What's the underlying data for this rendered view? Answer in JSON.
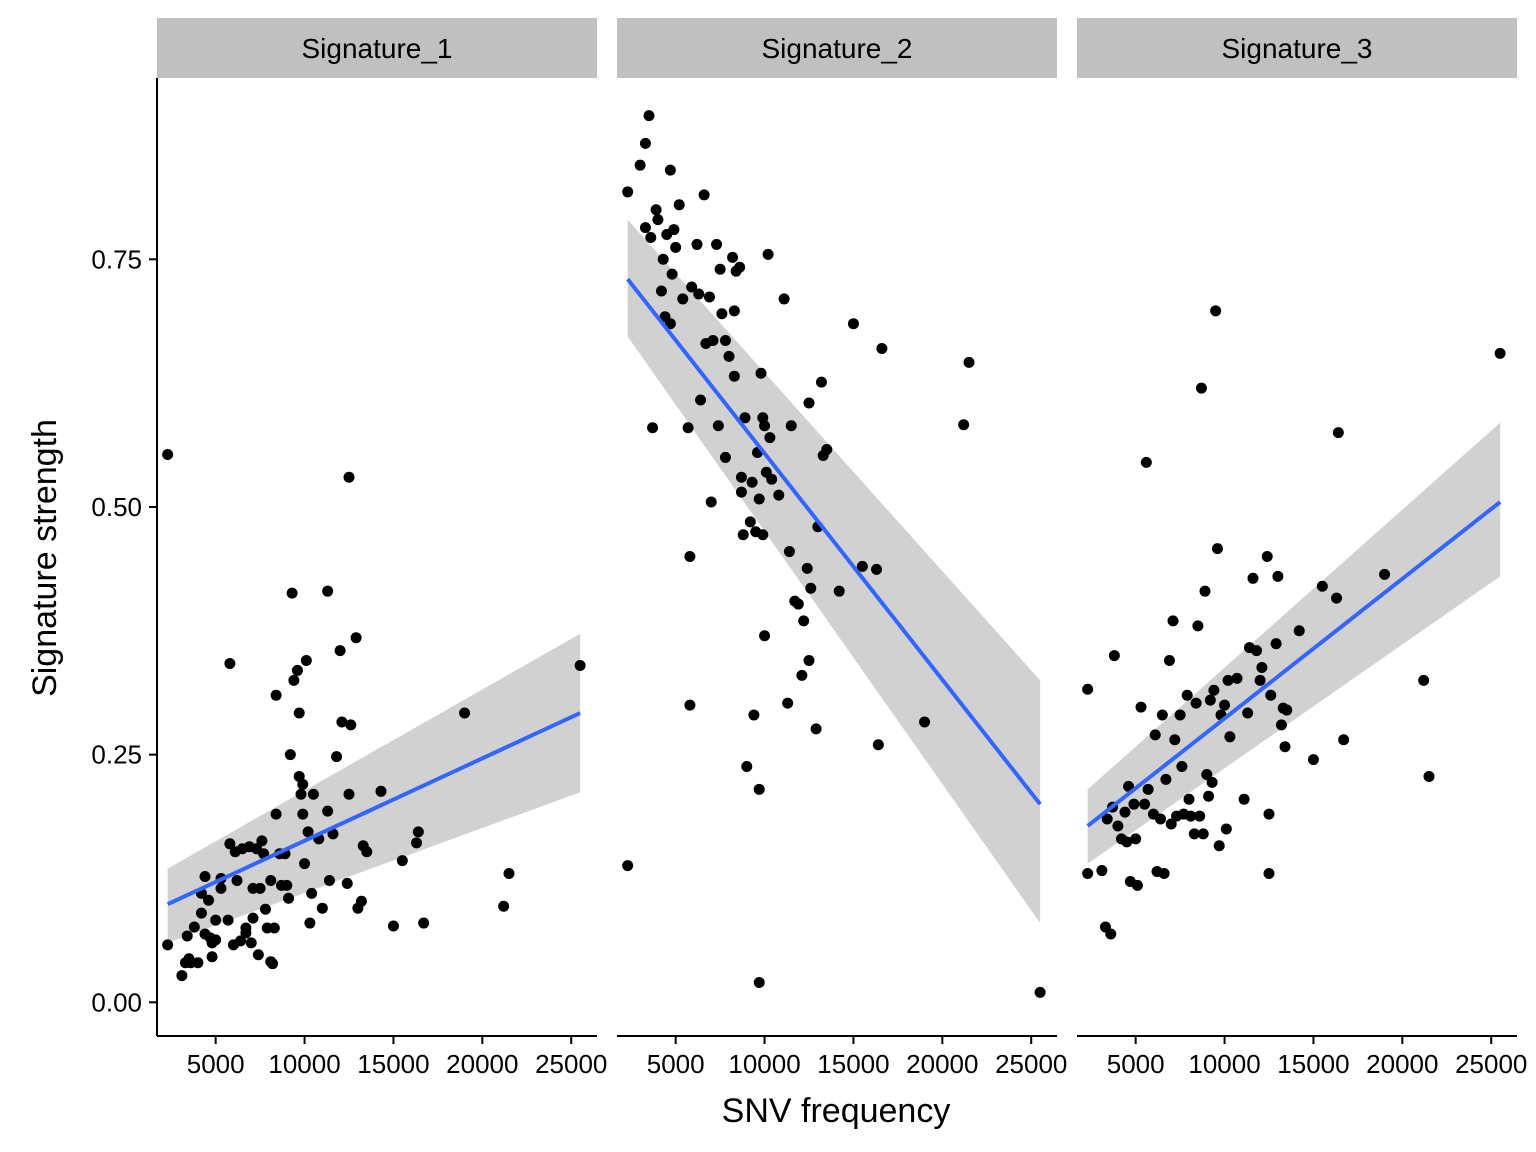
{
  "chart_data": {
    "type": "scatter",
    "facets": [
      "Signature_1",
      "Signature_2",
      "Signature_3"
    ],
    "xlabel": "SNV frequency",
    "ylabel": "Signature strength",
    "x_ticks": [
      5000,
      10000,
      15000,
      20000,
      25000
    ],
    "x_tick_labels": [
      "5000",
      "10000",
      "15000",
      "20000",
      "25000"
    ],
    "y_ticks": [
      0.0,
      0.25,
      0.5,
      0.75
    ],
    "y_tick_labels": [
      "0.00",
      "0.25",
      "0.50",
      "0.75"
    ],
    "xlim": [
      1700,
      26450
    ],
    "ylim": [
      -0.034,
      0.933
    ],
    "grid": false,
    "colors": {
      "points": "#000000",
      "fit_line": "#3366FF",
      "confidence_band": "#CCCCCC",
      "strip_background": "#C0C0C0"
    },
    "panels": [
      {
        "name": "Signature_1",
        "fit": {
          "x": [
            2300,
            25500
          ],
          "y": [
            0.099,
            0.292
          ]
        },
        "band": {
          "x": [
            2300,
            25500
          ],
          "lower": [
            0.06,
            0.212
          ],
          "upper": [
            0.135,
            0.372
          ]
        },
        "points": [
          [
            2300,
            0.553
          ],
          [
            2300,
            0.058
          ],
          [
            3100,
            0.027
          ],
          [
            3300,
            0.04
          ],
          [
            3400,
            0.067
          ],
          [
            3500,
            0.044
          ],
          [
            3600,
            0.04
          ],
          [
            3800,
            0.076
          ],
          [
            4000,
            0.04
          ],
          [
            4200,
            0.09
          ],
          [
            4200,
            0.11
          ],
          [
            4400,
            0.127
          ],
          [
            4400,
            0.069
          ],
          [
            4600,
            0.103
          ],
          [
            4700,
            0.065
          ],
          [
            4800,
            0.06
          ],
          [
            4800,
            0.046
          ],
          [
            5000,
            0.063
          ],
          [
            5000,
            0.083
          ],
          [
            5300,
            0.115
          ],
          [
            5300,
            0.125
          ],
          [
            5700,
            0.083
          ],
          [
            5800,
            0.342
          ],
          [
            5800,
            0.16
          ],
          [
            6000,
            0.058
          ],
          [
            6100,
            0.152
          ],
          [
            6200,
            0.123
          ],
          [
            6400,
            0.062
          ],
          [
            6500,
            0.155
          ],
          [
            6700,
            0.07
          ],
          [
            6700,
            0.075
          ],
          [
            6900,
            0.157
          ],
          [
            7000,
            0.06
          ],
          [
            7100,
            0.115
          ],
          [
            7100,
            0.085
          ],
          [
            7300,
            0.155
          ],
          [
            7400,
            0.048
          ],
          [
            7500,
            0.115
          ],
          [
            7600,
            0.163
          ],
          [
            7700,
            0.15
          ],
          [
            7800,
            0.094
          ],
          [
            7900,
            0.075
          ],
          [
            8100,
            0.123
          ],
          [
            8100,
            0.041
          ],
          [
            8200,
            0.039
          ],
          [
            8300,
            0.075
          ],
          [
            8400,
            0.31
          ],
          [
            8400,
            0.19
          ],
          [
            8600,
            0.15
          ],
          [
            8700,
            0.118
          ],
          [
            8900,
            0.15
          ],
          [
            9000,
            0.118
          ],
          [
            9100,
            0.105
          ],
          [
            9200,
            0.25
          ],
          [
            9300,
            0.413
          ],
          [
            9400,
            0.325
          ],
          [
            9600,
            0.335
          ],
          [
            9700,
            0.292
          ],
          [
            9700,
            0.228
          ],
          [
            9800,
            0.21
          ],
          [
            9900,
            0.22
          ],
          [
            9900,
            0.19
          ],
          [
            10000,
            0.14
          ],
          [
            10100,
            0.345
          ],
          [
            10200,
            0.172
          ],
          [
            10300,
            0.08
          ],
          [
            10400,
            0.11
          ],
          [
            10500,
            0.21
          ],
          [
            10800,
            0.165
          ],
          [
            11000,
            0.095
          ],
          [
            11300,
            0.415
          ],
          [
            11300,
            0.193
          ],
          [
            11400,
            0.123
          ],
          [
            11600,
            0.17
          ],
          [
            11800,
            0.248
          ],
          [
            12000,
            0.355
          ],
          [
            12100,
            0.283
          ],
          [
            12400,
            0.12
          ],
          [
            12500,
            0.21
          ],
          [
            12500,
            0.53
          ],
          [
            12600,
            0.28
          ],
          [
            12900,
            0.368
          ],
          [
            13000,
            0.095
          ],
          [
            13200,
            0.102
          ],
          [
            13300,
            0.158
          ],
          [
            13500,
            0.152
          ],
          [
            14300,
            0.213
          ],
          [
            15000,
            0.077
          ],
          [
            15500,
            0.143
          ],
          [
            16300,
            0.161
          ],
          [
            16400,
            0.172
          ],
          [
            16700,
            0.08
          ],
          [
            19000,
            0.292
          ],
          [
            21200,
            0.097
          ],
          [
            21500,
            0.13
          ],
          [
            25500,
            0.34
          ]
        ]
      },
      {
        "name": "Signature_2",
        "fit": {
          "x": [
            2300,
            25500
          ],
          "y": [
            0.73,
            0.2
          ]
        },
        "band": {
          "x": [
            2300,
            25500
          ],
          "lower": [
            0.672,
            0.08
          ],
          "upper": [
            0.79,
            0.325
          ]
        },
        "points": [
          [
            2300,
            0.138
          ],
          [
            2300,
            0.818
          ],
          [
            3000,
            0.845
          ],
          [
            3300,
            0.782
          ],
          [
            3300,
            0.867
          ],
          [
            3500,
            0.895
          ],
          [
            3600,
            0.772
          ],
          [
            3700,
            0.58
          ],
          [
            3900,
            0.8
          ],
          [
            4000,
            0.79
          ],
          [
            4200,
            0.718
          ],
          [
            4300,
            0.75
          ],
          [
            4400,
            0.692
          ],
          [
            4500,
            0.775
          ],
          [
            4700,
            0.685
          ],
          [
            4700,
            0.84
          ],
          [
            4800,
            0.735
          ],
          [
            4900,
            0.78
          ],
          [
            5000,
            0.762
          ],
          [
            5200,
            0.805
          ],
          [
            5400,
            0.71
          ],
          [
            5700,
            0.58
          ],
          [
            5800,
            0.45
          ],
          [
            5800,
            0.3
          ],
          [
            5900,
            0.722
          ],
          [
            6200,
            0.765
          ],
          [
            6300,
            0.715
          ],
          [
            6400,
            0.608
          ],
          [
            6600,
            0.815
          ],
          [
            6700,
            0.665
          ],
          [
            6900,
            0.712
          ],
          [
            7000,
            0.505
          ],
          [
            7100,
            0.668
          ],
          [
            7300,
            0.765
          ],
          [
            7400,
            0.582
          ],
          [
            7500,
            0.74
          ],
          [
            7600,
            0.695
          ],
          [
            7800,
            0.55
          ],
          [
            7800,
            0.668
          ],
          [
            8000,
            0.652
          ],
          [
            8200,
            0.752
          ],
          [
            8300,
            0.698
          ],
          [
            8300,
            0.632
          ],
          [
            8400,
            0.738
          ],
          [
            8600,
            0.742
          ],
          [
            8700,
            0.515
          ],
          [
            8700,
            0.53
          ],
          [
            8800,
            0.472
          ],
          [
            8900,
            0.59
          ],
          [
            9000,
            0.238
          ],
          [
            9200,
            0.485
          ],
          [
            9300,
            0.525
          ],
          [
            9400,
            0.29
          ],
          [
            9500,
            0.475
          ],
          [
            9600,
            0.555
          ],
          [
            9700,
            0.215
          ],
          [
            9700,
            0.508
          ],
          [
            9800,
            0.635
          ],
          [
            9900,
            0.472
          ],
          [
            10000,
            0.582
          ],
          [
            10000,
            0.37
          ],
          [
            10100,
            0.535
          ],
          [
            10200,
            0.755
          ],
          [
            10300,
            0.57
          ],
          [
            10400,
            0.528
          ],
          [
            10800,
            0.512
          ],
          [
            11100,
            0.71
          ],
          [
            11300,
            0.302
          ],
          [
            11400,
            0.455
          ],
          [
            11500,
            0.582
          ],
          [
            11700,
            0.405
          ],
          [
            11900,
            0.402
          ],
          [
            12100,
            0.33
          ],
          [
            12200,
            0.385
          ],
          [
            12400,
            0.438
          ],
          [
            12500,
            0.605
          ],
          [
            12500,
            0.345
          ],
          [
            12600,
            0.418
          ],
          [
            12900,
            0.276
          ],
          [
            13000,
            0.48
          ],
          [
            13200,
            0.626
          ],
          [
            13300,
            0.552
          ],
          [
            13500,
            0.558
          ],
          [
            14200,
            0.415
          ],
          [
            15000,
            0.685
          ],
          [
            15500,
            0.44
          ],
          [
            16300,
            0.437
          ],
          [
            16400,
            0.26
          ],
          [
            16600,
            0.66
          ],
          [
            19000,
            0.283
          ],
          [
            21200,
            0.583
          ],
          [
            21500,
            0.646
          ],
          [
            25500,
            0.01
          ],
          [
            9700,
            0.02
          ],
          [
            9900,
            0.59
          ]
        ]
      },
      {
        "name": "Signature_3",
        "fit": {
          "x": [
            2300,
            25500
          ],
          "y": [
            0.178,
            0.505
          ]
        },
        "band": {
          "x": [
            2300,
            25500
          ],
          "lower": [
            0.14,
            0.43
          ],
          "upper": [
            0.215,
            0.585
          ]
        },
        "points": [
          [
            2300,
            0.316
          ],
          [
            2300,
            0.13
          ],
          [
            3100,
            0.133
          ],
          [
            3300,
            0.076
          ],
          [
            3400,
            0.185
          ],
          [
            3600,
            0.069
          ],
          [
            3700,
            0.197
          ],
          [
            3800,
            0.35
          ],
          [
            4000,
            0.178
          ],
          [
            4200,
            0.165
          ],
          [
            4400,
            0.192
          ],
          [
            4500,
            0.162
          ],
          [
            4600,
            0.218
          ],
          [
            4700,
            0.122
          ],
          [
            4900,
            0.2
          ],
          [
            5000,
            0.165
          ],
          [
            5100,
            0.118
          ],
          [
            5300,
            0.298
          ],
          [
            5500,
            0.2
          ],
          [
            5600,
            0.545
          ],
          [
            5700,
            0.215
          ],
          [
            6000,
            0.19
          ],
          [
            6100,
            0.27
          ],
          [
            6200,
            0.132
          ],
          [
            6400,
            0.185
          ],
          [
            6500,
            0.29
          ],
          [
            6600,
            0.13
          ],
          [
            6700,
            0.225
          ],
          [
            6900,
            0.345
          ],
          [
            7000,
            0.18
          ],
          [
            7100,
            0.385
          ],
          [
            7200,
            0.265
          ],
          [
            7300,
            0.188
          ],
          [
            7500,
            0.29
          ],
          [
            7600,
            0.238
          ],
          [
            7700,
            0.19
          ],
          [
            7900,
            0.31
          ],
          [
            8000,
            0.205
          ],
          [
            8100,
            0.188
          ],
          [
            8300,
            0.17
          ],
          [
            8400,
            0.302
          ],
          [
            8500,
            0.38
          ],
          [
            8600,
            0.188
          ],
          [
            8700,
            0.62
          ],
          [
            8800,
            0.17
          ],
          [
            8900,
            0.415
          ],
          [
            9000,
            0.23
          ],
          [
            9100,
            0.208
          ],
          [
            9200,
            0.305
          ],
          [
            9300,
            0.222
          ],
          [
            9400,
            0.315
          ],
          [
            9500,
            0.698
          ],
          [
            9600,
            0.458
          ],
          [
            9700,
            0.158
          ],
          [
            9800,
            0.29
          ],
          [
            10000,
            0.3
          ],
          [
            10100,
            0.175
          ],
          [
            10200,
            0.325
          ],
          [
            10300,
            0.268
          ],
          [
            10700,
            0.327
          ],
          [
            11100,
            0.205
          ],
          [
            11300,
            0.292
          ],
          [
            11400,
            0.358
          ],
          [
            11600,
            0.428
          ],
          [
            11800,
            0.355
          ],
          [
            12000,
            0.325
          ],
          [
            12100,
            0.338
          ],
          [
            12400,
            0.45
          ],
          [
            12500,
            0.13
          ],
          [
            12500,
            0.19
          ],
          [
            12600,
            0.31
          ],
          [
            12900,
            0.362
          ],
          [
            13000,
            0.43
          ],
          [
            13200,
            0.28
          ],
          [
            13300,
            0.297
          ],
          [
            13400,
            0.258
          ],
          [
            13500,
            0.295
          ],
          [
            14200,
            0.375
          ],
          [
            15000,
            0.245
          ],
          [
            15500,
            0.42
          ],
          [
            16300,
            0.408
          ],
          [
            16400,
            0.575
          ],
          [
            16700,
            0.265
          ],
          [
            19000,
            0.432
          ],
          [
            21200,
            0.325
          ],
          [
            21500,
            0.228
          ],
          [
            25500,
            0.655
          ]
        ]
      }
    ]
  }
}
